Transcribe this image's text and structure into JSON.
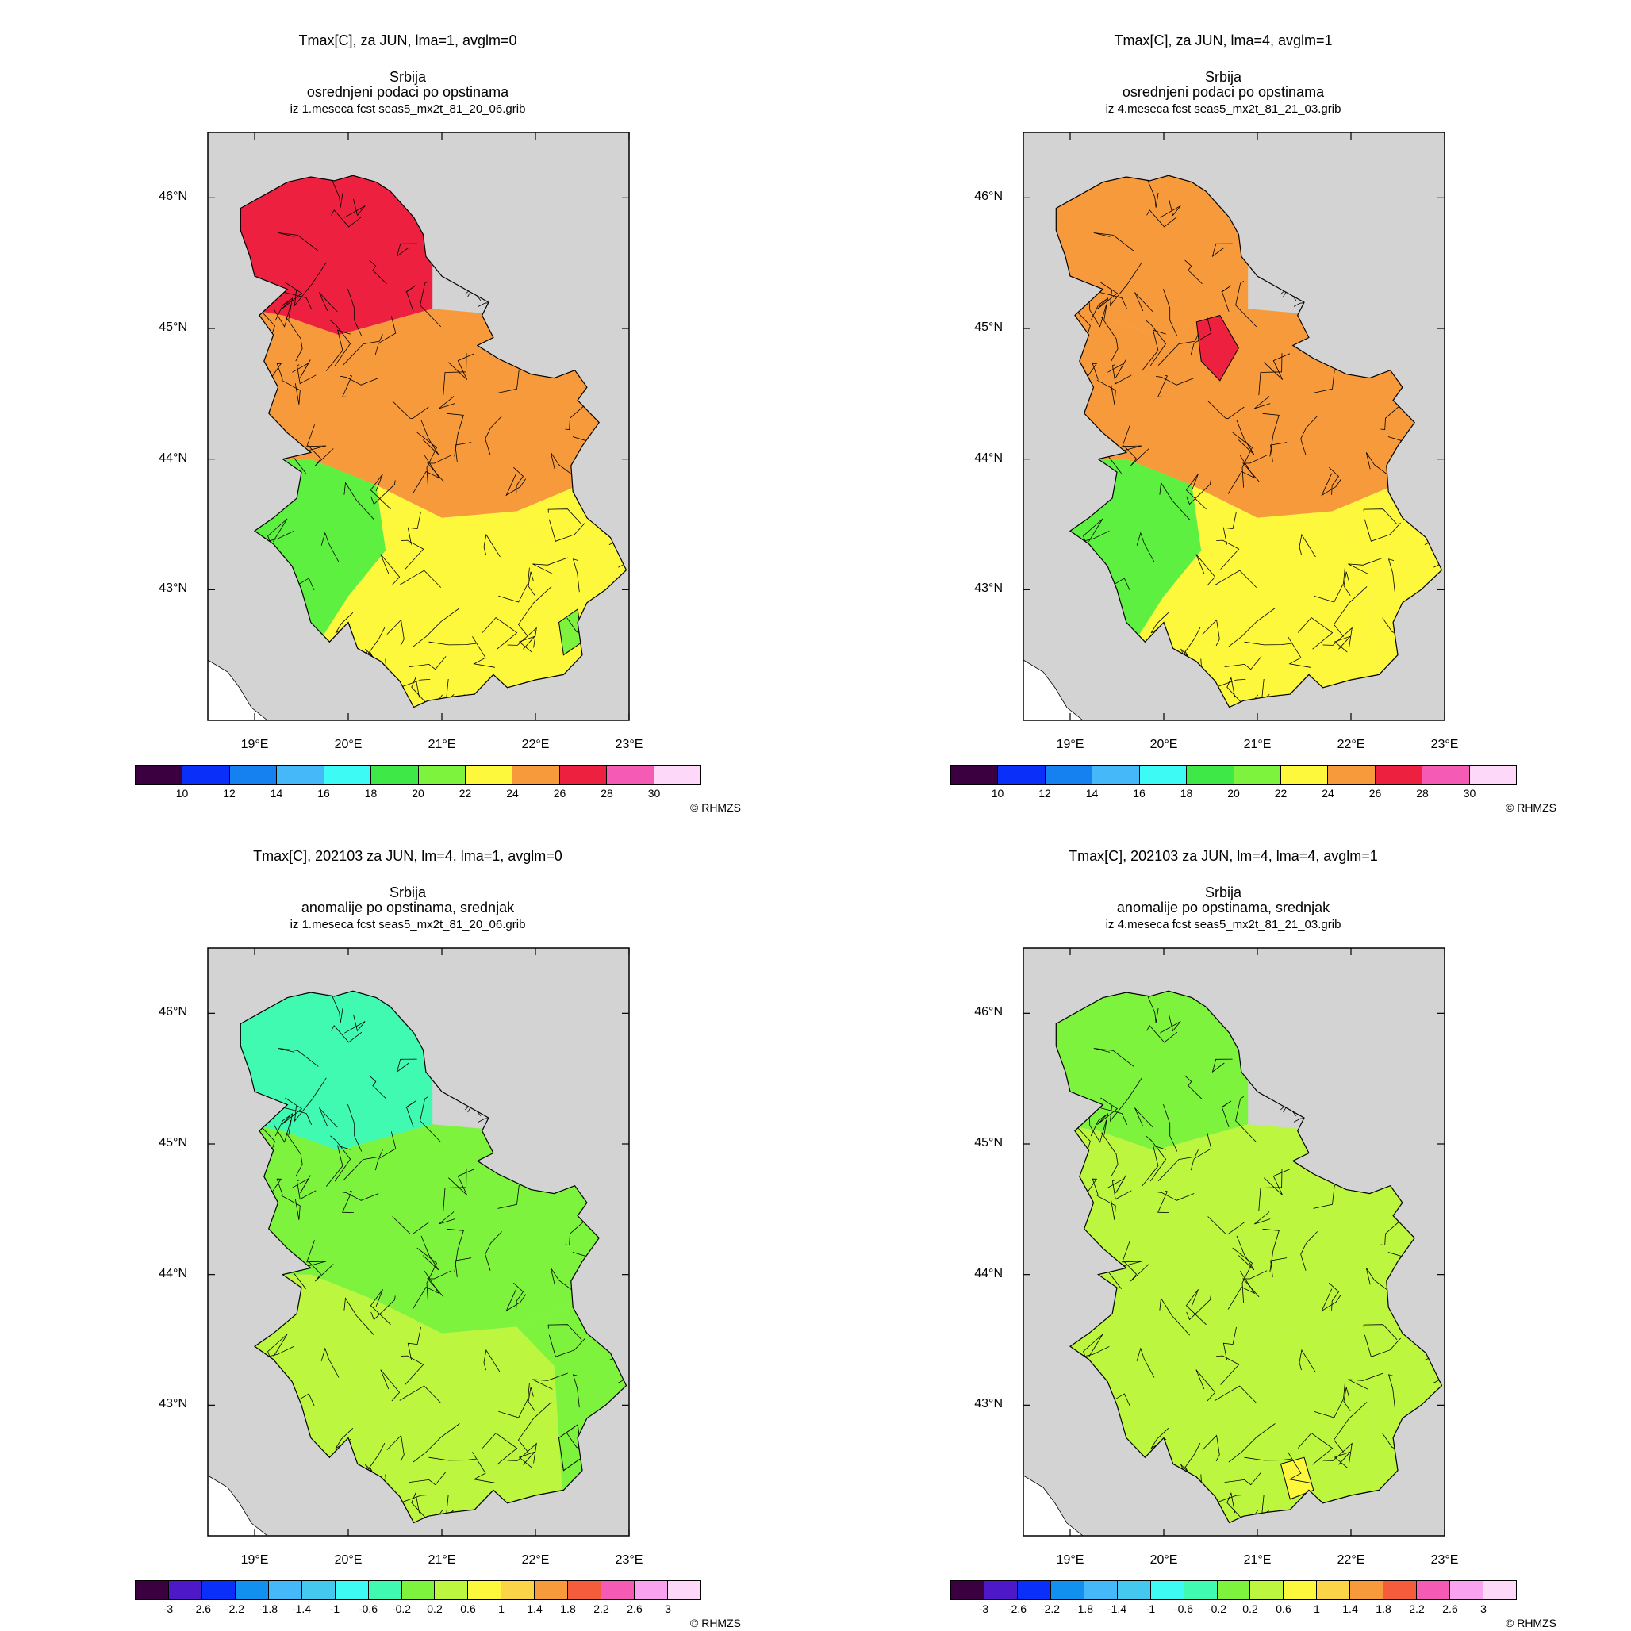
{
  "panels": [
    {
      "title": "Tmax[C], za JUN, lma=1, avglm=0",
      "region": "Srbija",
      "subtitle": "osrednjeni podaci po opstinama",
      "source": "iz 1.meseca fcst seas5_mx2t_81_20_06.grib",
      "fills": {
        "north": "#ee2040",
        "central": "#f79a3c",
        "south": "#fdf83c",
        "west": "#5df040",
        "east": "#fdf83c",
        "spot": "#7ef33e"
      }
    },
    {
      "title": "Tmax[C], za JUN, lma=4, avglm=1",
      "region": "Srbija",
      "subtitle": "osrednjeni podaci po opstinama",
      "source": "iz 4.meseca fcst seas5_mx2t_81_21_03.grib",
      "fills": {
        "north": "#f79a3c",
        "central": "#f79a3c",
        "south": "#fdf83c",
        "west": "#5df040",
        "east": "#fdf83c",
        "spot": "#ee2040"
      }
    },
    {
      "title": "Tmax[C], 202103 za JUN, lm=4, lma=1, avglm=0",
      "region": "Srbija",
      "subtitle": "anomalije po opstinama, srednjak",
      "source": "iz 1.meseca fcst seas5_mx2t_81_20_06.grib",
      "fills": {
        "north": "#3ffab0",
        "central": "#7ef33e",
        "south": "#bdf63e",
        "west": "#bdf63e",
        "east": "#7ef33e",
        "spot": "#7ef33e"
      }
    },
    {
      "title": "Tmax[C], 202103 za JUN, lm=4, lma=4, avglm=1",
      "region": "Srbija",
      "subtitle": "anomalije po opstinama, srednjak",
      "source": "iz 4.meseca fcst seas5_mx2t_81_21_03.grib",
      "fills": {
        "north": "#7ef33e",
        "central": "#bdf63e",
        "south": "#bdf63e",
        "west": "#bdf63e",
        "east": "#bdf63e",
        "spot": "#fdf83c"
      }
    }
  ],
  "map": {
    "lat_labels": [
      "46°N",
      "45°N",
      "44°N",
      "43°N"
    ],
    "lon_labels": [
      "19°E",
      "20°E",
      "21°E",
      "22°E",
      "23°E"
    ],
    "ocean_color": "#d3d3d3",
    "sea_color": "#ffffff"
  },
  "legend_abs": {
    "colors": [
      "#3a003f",
      "#0a2ff8",
      "#1580f0",
      "#44b8f8",
      "#3efaf5",
      "#3ee846",
      "#7ef33e",
      "#fdf83c",
      "#f79a3c",
      "#ee2040",
      "#f55bb5",
      "#fdd8f9"
    ],
    "ticks": [
      "10",
      "12",
      "14",
      "16",
      "18",
      "20",
      "22",
      "24",
      "26",
      "28",
      "30"
    ]
  },
  "legend_anom": {
    "colors": [
      "#3a003f",
      "#4d18c8",
      "#0a2ff8",
      "#1190ef",
      "#44b8f8",
      "#44c8f0",
      "#3efaf5",
      "#3ffab0",
      "#7ef33e",
      "#bdf63e",
      "#fdf83c",
      "#fbd448",
      "#f79a3c",
      "#f55c3c",
      "#f55bb5",
      "#f9a3f0",
      "#fdd8f9"
    ],
    "ticks": [
      "-3",
      "-2.6",
      "-2.2",
      "-1.8",
      "-1.4",
      "-1",
      "-0.6",
      "-0.2",
      "0.2",
      "0.6",
      "1",
      "1.4",
      "1.8",
      "2.2",
      "2.6",
      "3"
    ]
  },
  "credit": "© RHMZS"
}
